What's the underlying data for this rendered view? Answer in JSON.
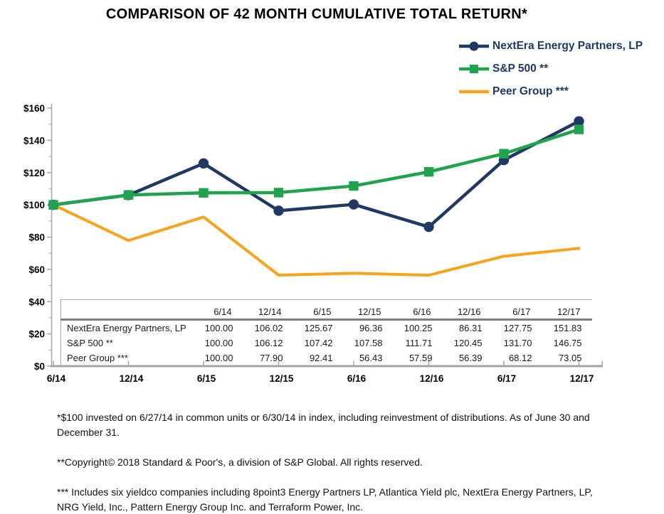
{
  "title": "COMPARISON OF 42 MONTH CUMULATIVE TOTAL RETURN*",
  "colors": {
    "nextera": "#1F3864",
    "sp500": "#21A34E",
    "peer": "#F9A21B",
    "axis": "#A6A6A6",
    "table_border": "#A6A6A6",
    "table_header_rule": "#808080",
    "legend_text": "#1F3864",
    "text": "#000000"
  },
  "chart_data": {
    "type": "line",
    "title": "COMPARISON OF 42 MONTH CUMULATIVE TOTAL RETURN*",
    "categories": [
      "6/14",
      "12/14",
      "6/15",
      "12/15",
      "6/16",
      "12/16",
      "6/17",
      "12/17"
    ],
    "series": [
      {
        "key": "nextera",
        "name": "NextEra Energy Partners, LP",
        "marker": "circle",
        "color": "#1F3864",
        "values": [
          100.0,
          106.02,
          125.67,
          96.36,
          100.25,
          86.31,
          127.75,
          151.83
        ]
      },
      {
        "key": "sp500",
        "name": "S&P 500 **",
        "marker": "square",
        "color": "#21A34E",
        "values": [
          100.0,
          106.12,
          107.42,
          107.58,
          111.71,
          120.45,
          131.7,
          146.75
        ]
      },
      {
        "key": "peer",
        "name": "Peer Group ***",
        "marker": "none",
        "color": "#F9A21B",
        "values": [
          100.0,
          77.9,
          92.41,
          56.43,
          57.59,
          56.39,
          68.12,
          73.05
        ]
      }
    ],
    "xlabel": "",
    "ylabel": "",
    "ylim": [
      0,
      160
    ],
    "y_tick_step": 20,
    "y_minor_tick_step": 10,
    "y_tick_prefix": "$",
    "y_tick_labels": [
      "$0",
      "$20",
      "$40",
      "$60",
      "$80",
      "$100",
      "$120",
      "$140",
      "$160"
    ],
    "grid": false,
    "legend_position": "top-right"
  },
  "table": {
    "columns": [
      "6/14",
      "12/14",
      "6/15",
      "12/15",
      "6/16",
      "12/16",
      "6/17",
      "12/17"
    ],
    "rows": [
      {
        "label": "NextEra Energy Partners, LP",
        "values": [
          "100.00",
          "106.02",
          "125.67",
          "96.36",
          "100.25",
          "86.31",
          "127.75",
          "151.83"
        ]
      },
      {
        "label": "S&P 500 **",
        "values": [
          "100.00",
          "106.12",
          "107.42",
          "107.58",
          "111.71",
          "120.45",
          "131.70",
          "146.75"
        ]
      },
      {
        "label": "Peer Group ***",
        "values": [
          "100.00",
          "77.90",
          "92.41",
          "56.43",
          "57.59",
          "56.39",
          "68.12",
          "73.05"
        ]
      }
    ]
  },
  "footnotes": [
    "*$100 invested on 6/27/14 in common units or 6/30/14 in index, including reinvestment of distributions. As of June 30 and December 31.",
    "**Copyright© 2018 Standard & Poor's, a division of S&P Global. All rights reserved.",
    "*** Includes six yieldco companies including 8point3 Energy Partners LP, Atlantica Yield plc, NextEra Energy Partners, LP, NRG Yield, Inc., Pattern Energy Group Inc. and Terraform Power, Inc."
  ]
}
